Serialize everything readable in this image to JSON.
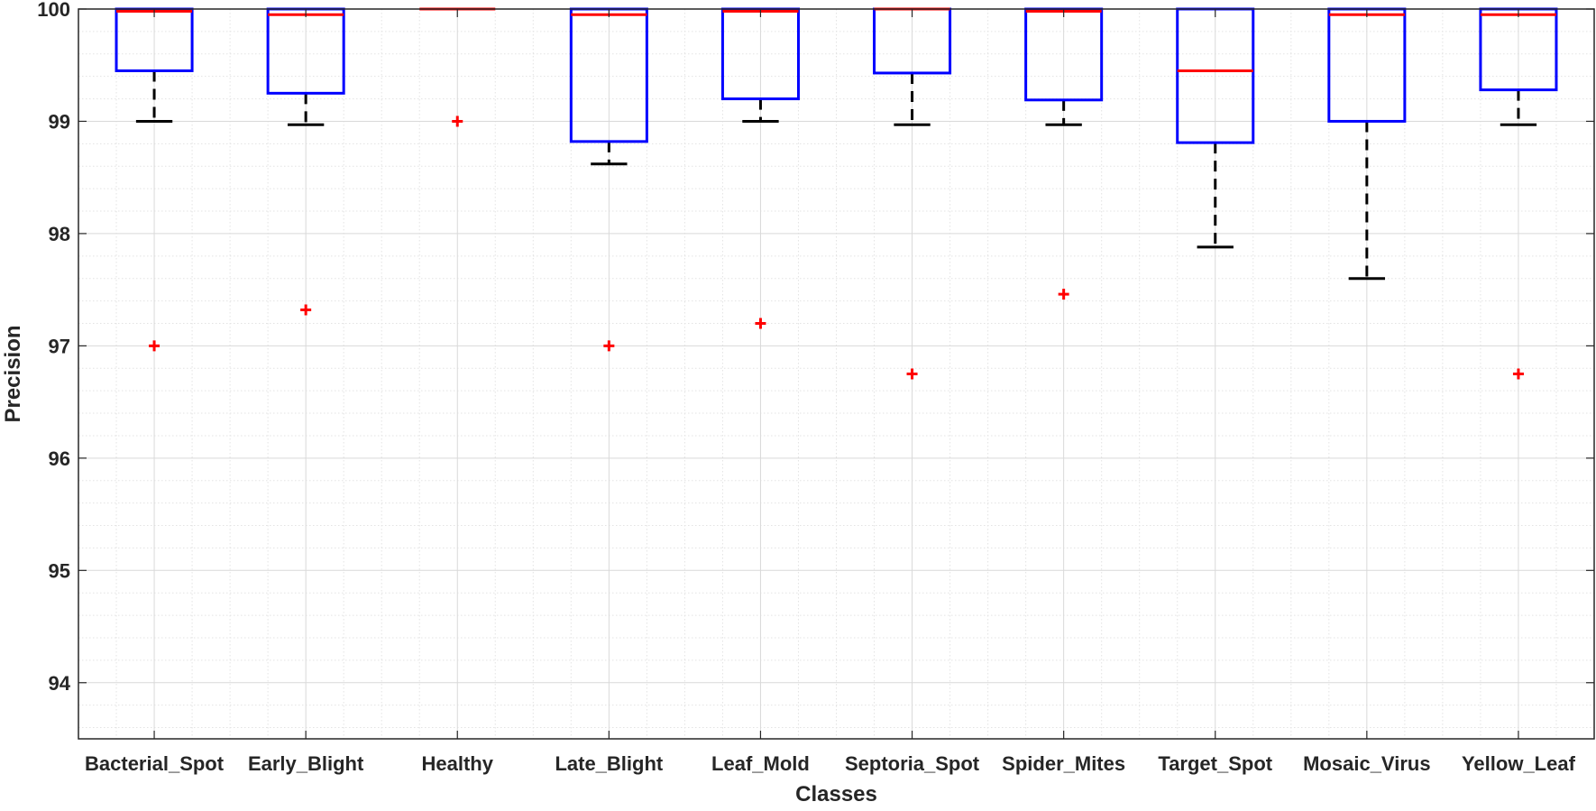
{
  "chart_data": {
    "type": "box",
    "title": "",
    "xlabel": "Classes",
    "ylabel": "Precision",
    "ylim": [
      93.5,
      100
    ],
    "yticks": [
      94,
      95,
      96,
      97,
      98,
      99,
      100
    ],
    "grid": true,
    "minor_grid": true,
    "colors": {
      "box": "#0000ff",
      "median": "#ff0000",
      "whisker": "#000000",
      "outlier": "#ff0000",
      "grid": "#d9d9d9"
    },
    "categories": [
      "Bacterial_Spot",
      "Early_Blight",
      "Healthy",
      "Late_Blight",
      "Leaf_Mold",
      "Septoria_Spot",
      "Spider_Mites",
      "Target_Spot",
      "Mosaic_Virus",
      "Yellow_Leaf"
    ],
    "boxes": [
      {
        "q1": 99.45,
        "median": 99.98,
        "q3": 100,
        "whisker_low": 99.0,
        "whisker_high": 100,
        "outliers": [
          97.0
        ]
      },
      {
        "q1": 99.25,
        "median": 99.95,
        "q3": 100,
        "whisker_low": 98.97,
        "whisker_high": 100,
        "outliers": [
          97.32
        ]
      },
      {
        "q1": 100,
        "median": 100,
        "q3": 100,
        "whisker_low": 100,
        "whisker_high": 100,
        "outliers": [
          99.0
        ]
      },
      {
        "q1": 98.82,
        "median": 99.95,
        "q3": 100,
        "whisker_low": 98.62,
        "whisker_high": 100,
        "outliers": [
          97.0
        ]
      },
      {
        "q1": 99.2,
        "median": 99.98,
        "q3": 100,
        "whisker_low": 99.0,
        "whisker_high": 100,
        "outliers": [
          97.2
        ]
      },
      {
        "q1": 99.43,
        "median": 100,
        "q3": 100,
        "whisker_low": 98.97,
        "whisker_high": 100,
        "outliers": [
          96.75
        ]
      },
      {
        "q1": 99.19,
        "median": 99.98,
        "q3": 100,
        "whisker_low": 98.97,
        "whisker_high": 100,
        "outliers": [
          97.46
        ]
      },
      {
        "q1": 98.81,
        "median": 99.45,
        "q3": 100,
        "whisker_low": 97.88,
        "whisker_high": 100,
        "outliers": []
      },
      {
        "q1": 99.0,
        "median": 99.95,
        "q3": 100,
        "whisker_low": 97.6,
        "whisker_high": 100,
        "outliers": []
      },
      {
        "q1": 99.28,
        "median": 99.95,
        "q3": 100,
        "whisker_low": 98.97,
        "whisker_high": 100,
        "outliers": [
          96.75
        ]
      }
    ]
  }
}
